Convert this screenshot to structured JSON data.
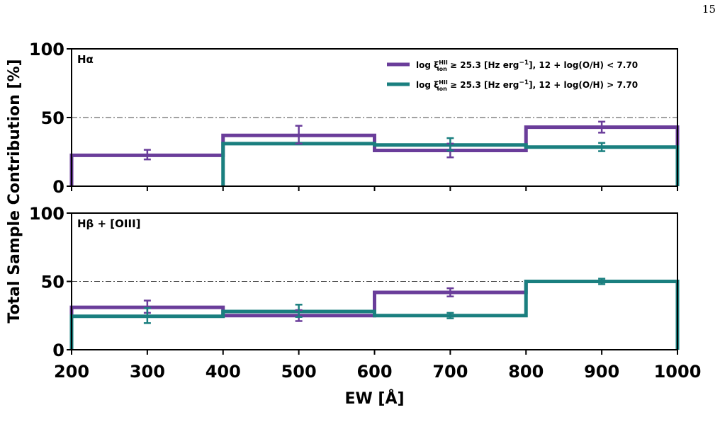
{
  "page": {
    "number": "15"
  },
  "colors": {
    "purple": "#6A3D9A",
    "teal": "#1A7F7F",
    "axis": "#000000",
    "reference": "#444444"
  },
  "chart_data": [
    {
      "type": "line",
      "style": "step-histogram",
      "panel_label": "Hα",
      "xlabel": "EW [Å]",
      "ylabel": "Total Sample Contribution [%]",
      "xlim": [
        200,
        1000
      ],
      "ylim": [
        0,
        100
      ],
      "x_ticks": [
        200,
        300,
        400,
        500,
        600,
        700,
        800,
        900,
        1000
      ],
      "y_ticks": [
        0,
        50,
        100
      ],
      "reference_line": 50,
      "legend_position": "top-right",
      "bin_edges": [
        200,
        400,
        600,
        800,
        1000
      ],
      "bin_centers": [
        300,
        500,
        700,
        900
      ],
      "series": [
        {
          "name": "log ξ_ion^HII ≥ 25.3 [Hz erg^−1], 12 + log(O/H) < 7.70",
          "values": [
            22.5,
            37,
            26,
            43
          ],
          "errors": [
            [
              3,
              4
            ],
            [
              6,
              7
            ],
            [
              5,
              5
            ],
            [
              4,
              4
            ]
          ],
          "error_x": [
            300,
            500,
            700,
            900
          ],
          "color_key": "purple"
        },
        {
          "name": "log ξ_ion^HII ≥ 25.3 [Hz erg^−1], 12 + log(O/H) > 7.70",
          "values": [
            null,
            31,
            30,
            28.5
          ],
          "errors": [
            null,
            null,
            [
              4,
              5
            ],
            [
              3,
              3
            ]
          ],
          "error_x": [
            null,
            null,
            700,
            900
          ],
          "color_key": "teal"
        }
      ]
    },
    {
      "type": "line",
      "style": "step-histogram",
      "panel_label": "Hβ + [OIII]",
      "xlim": [
        200,
        1000
      ],
      "ylim": [
        0,
        100
      ],
      "x_ticks": [
        200,
        300,
        400,
        500,
        600,
        700,
        800,
        900,
        1000
      ],
      "y_ticks": [
        0,
        50,
        100
      ],
      "reference_line": 50,
      "bin_edges": [
        200,
        400,
        600,
        800,
        1000
      ],
      "bin_centers": [
        300,
        500,
        700,
        900
      ],
      "series": [
        {
          "name": "log ξ_ion^HII ≥ 25.3 [Hz erg^−1], 12 + log(O/H) < 7.70",
          "values": [
            31,
            25,
            42,
            50
          ],
          "errors": [
            [
              4,
              5
            ],
            [
              4,
              4
            ],
            [
              3,
              3
            ],
            null
          ],
          "error_x": [
            300,
            500,
            700,
            null
          ],
          "color_key": "purple"
        },
        {
          "name": "log ξ_ion^HII ≥ 25.3 [Hz erg^−1], 12 + log(O/H) > 7.70",
          "values": [
            24.5,
            28,
            25,
            50
          ],
          "errors": [
            [
              5,
              6
            ],
            [
              4,
              5
            ],
            [
              2,
              2
            ],
            [
              2,
              2
            ]
          ],
          "error_x": [
            300,
            500,
            700,
            900
          ],
          "color_key": "teal"
        }
      ]
    }
  ]
}
